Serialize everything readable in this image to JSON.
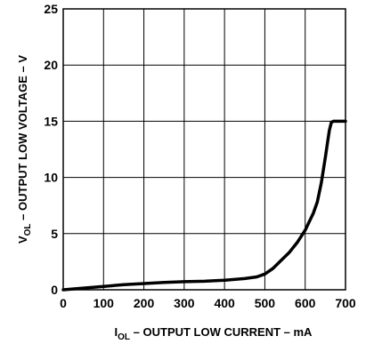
{
  "chart_data": {
    "type": "line",
    "xlabel": {
      "main": "I",
      "sub": "OL",
      "rest": " – OUTPUT LOW CURRENT – mA"
    },
    "ylabel": {
      "main": "V",
      "sub": "OL",
      "rest": " – OUTPUT LOW VOLTAGE – V"
    },
    "xlim": [
      0,
      700
    ],
    "ylim": [
      0,
      25
    ],
    "xticks": [
      0,
      100,
      200,
      300,
      400,
      500,
      600,
      700
    ],
    "yticks": [
      0,
      5,
      10,
      15,
      20,
      25
    ],
    "grid": true,
    "series": [
      {
        "color": "#000000",
        "x": [
          0,
          50,
          100,
          150,
          200,
          250,
          300,
          350,
          400,
          450,
          480,
          500,
          520,
          540,
          560,
          580,
          600,
          620,
          630,
          640,
          650,
          655,
          660,
          665,
          670,
          700
        ],
        "y": [
          0.0,
          0.15,
          0.3,
          0.45,
          0.55,
          0.65,
          0.72,
          0.76,
          0.85,
          1.0,
          1.15,
          1.4,
          1.9,
          2.6,
          3.3,
          4.2,
          5.3,
          6.8,
          7.8,
          9.5,
          11.8,
          13.0,
          14.2,
          14.9,
          15.0,
          15.0
        ]
      }
    ]
  }
}
